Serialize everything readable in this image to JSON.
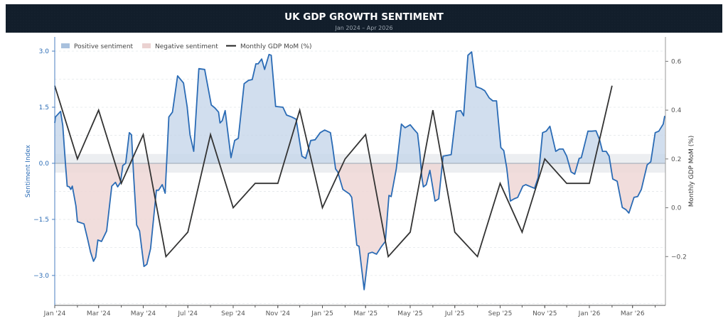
{
  "header": {
    "title": "UK GDP GROWTH SENTIMENT",
    "subtitle": "Jan 2024 – Apr 2026"
  },
  "colors": {
    "header_bg": "#121e2b",
    "sentiment_line": "#2a6bb5",
    "positive_fill": "#c5d6ea",
    "negative_fill": "#efd7d6",
    "gdp_line": "#333333",
    "neutral_band": "#e9ebee"
  },
  "chart_data": {
    "type": "line",
    "title": "UK GDP GROWTH SENTIMENT",
    "subtitle": "Jan 2024 – Apr 2026",
    "xlabel": "",
    "ylabel": "Sentiment Index",
    "ylabel_right": "Monthly GDP MoM (%)",
    "xlim": [
      "2024-01-01",
      "2026-04-15"
    ],
    "ylim": [
      -3.8,
      3.38
    ],
    "ylim_right": [
      -0.4,
      0.7
    ],
    "x_ticks": [
      "Jan '24",
      "Mar '24",
      "May '24",
      "Jul '24",
      "Sep '24",
      "Nov '24",
      "Jan '25",
      "Mar '25",
      "May '25",
      "Jul '25",
      "Sep '25",
      "Nov '25",
      "Jan '26",
      "Mar '26"
    ],
    "x_tick_dates": [
      "2024-01-01",
      "2024-03-01",
      "2024-05-01",
      "2024-07-01",
      "2024-09-01",
      "2024-11-01",
      "2025-01-01",
      "2025-03-01",
      "2025-05-01",
      "2025-07-01",
      "2025-09-01",
      "2025-11-01",
      "2026-01-01",
      "2026-03-01"
    ],
    "y_ticks": [
      3.0,
      1.5,
      0.0,
      -1.5,
      -3.0
    ],
    "y_tick_labels": [
      "3.0",
      "1.5",
      "0.0",
      "−1.5",
      "−3.0"
    ],
    "y_ticks_right": [
      0.6,
      0.4,
      0.2,
      0.0,
      -0.2
    ],
    "y_tick_labels_right": [
      "0.6",
      "0.4",
      "0.2",
      "0.0",
      "−0.2"
    ],
    "grid": "horizontal dashed",
    "neutral_band": [
      -0.25,
      0.25
    ],
    "legend": {
      "placement": "top-left",
      "entries": [
        "Positive sentiment",
        "Negative sentiment",
        "Monthly GDP MoM (%)"
      ]
    },
    "series": [
      {
        "name": "Sentiment",
        "axis": "left",
        "points": [
          [
            "2024-01-01",
            1.08
          ],
          [
            "2024-01-02",
            1.24
          ],
          [
            "2024-01-09",
            1.39
          ],
          [
            "2024-01-12",
            1.01
          ],
          [
            "2024-01-16",
            -0.1
          ],
          [
            "2024-01-18",
            -0.61
          ],
          [
            "2024-01-21",
            -0.63
          ],
          [
            "2024-01-23",
            -0.7
          ],
          [
            "2024-01-25",
            -0.61
          ],
          [
            "2024-01-30",
            -1.14
          ],
          [
            "2024-02-01",
            -1.56
          ],
          [
            "2024-02-10",
            -1.62
          ],
          [
            "2024-02-15",
            -2.03
          ],
          [
            "2024-02-19",
            -2.38
          ],
          [
            "2024-02-23",
            -2.62
          ],
          [
            "2024-02-26",
            -2.51
          ],
          [
            "2024-02-29",
            -2.05
          ],
          [
            "2024-03-05",
            -2.09
          ],
          [
            "2024-03-12",
            -1.81
          ],
          [
            "2024-03-19",
            -0.61
          ],
          [
            "2024-03-24",
            -0.51
          ],
          [
            "2024-03-27",
            -0.63
          ],
          [
            "2024-03-31",
            -0.51
          ],
          [
            "2024-04-03",
            -0.06
          ],
          [
            "2024-04-07",
            0.0
          ],
          [
            "2024-04-12",
            0.82
          ],
          [
            "2024-04-15",
            0.76
          ],
          [
            "2024-04-18",
            -0.38
          ],
          [
            "2024-04-22",
            -1.65
          ],
          [
            "2024-04-26",
            -1.81
          ],
          [
            "2024-05-02",
            -2.76
          ],
          [
            "2024-05-06",
            -2.7
          ],
          [
            "2024-05-11",
            -2.28
          ],
          [
            "2024-05-19",
            -0.72
          ],
          [
            "2024-05-22",
            -0.72
          ],
          [
            "2024-05-27",
            -0.57
          ],
          [
            "2024-05-31",
            -0.8
          ],
          [
            "2024-06-05",
            1.24
          ],
          [
            "2024-06-10",
            1.37
          ],
          [
            "2024-06-17",
            2.34
          ],
          [
            "2024-06-22",
            2.22
          ],
          [
            "2024-06-25",
            2.15
          ],
          [
            "2024-06-30",
            1.52
          ],
          [
            "2024-07-04",
            0.76
          ],
          [
            "2024-07-09",
            0.32
          ],
          [
            "2024-07-16",
            2.53
          ],
          [
            "2024-07-24",
            2.51
          ],
          [
            "2024-08-02",
            1.56
          ],
          [
            "2024-08-07",
            1.48
          ],
          [
            "2024-08-12",
            1.37
          ],
          [
            "2024-08-14",
            1.08
          ],
          [
            "2024-08-17",
            1.14
          ],
          [
            "2024-08-21",
            1.41
          ],
          [
            "2024-08-29",
            0.15
          ],
          [
            "2024-09-03",
            0.61
          ],
          [
            "2024-09-08",
            0.67
          ],
          [
            "2024-09-16",
            2.13
          ],
          [
            "2024-09-22",
            2.22
          ],
          [
            "2024-09-27",
            2.24
          ],
          [
            "2024-10-02",
            2.66
          ],
          [
            "2024-10-05",
            2.66
          ],
          [
            "2024-10-10",
            2.79
          ],
          [
            "2024-10-14",
            2.51
          ],
          [
            "2024-10-20",
            2.91
          ],
          [
            "2024-10-23",
            2.89
          ],
          [
            "2024-10-29",
            1.52
          ],
          [
            "2024-11-08",
            1.5
          ],
          [
            "2024-11-13",
            1.29
          ],
          [
            "2024-11-20",
            1.24
          ],
          [
            "2024-11-26",
            1.18
          ],
          [
            "2024-12-04",
            0.19
          ],
          [
            "2024-12-09",
            0.13
          ],
          [
            "2024-12-16",
            0.61
          ],
          [
            "2024-12-22",
            0.63
          ],
          [
            "2024-12-29",
            0.82
          ],
          [
            "2025-01-04",
            0.89
          ],
          [
            "2025-01-12",
            0.82
          ],
          [
            "2025-01-15",
            0.44
          ],
          [
            "2025-01-19",
            -0.15
          ],
          [
            "2025-01-22",
            -0.23
          ],
          [
            "2025-01-29",
            -0.7
          ],
          [
            "2025-02-07",
            -0.82
          ],
          [
            "2025-02-10",
            -0.91
          ],
          [
            "2025-02-17",
            -2.19
          ],
          [
            "2025-02-20",
            -2.22
          ],
          [
            "2025-02-27",
            -3.38
          ],
          [
            "2025-03-05",
            -2.41
          ],
          [
            "2025-03-10",
            -2.38
          ],
          [
            "2025-03-16",
            -2.43
          ],
          [
            "2025-03-23",
            -2.22
          ],
          [
            "2025-03-28",
            -2.09
          ],
          [
            "2025-04-02",
            -0.86
          ],
          [
            "2025-04-05",
            -0.89
          ],
          [
            "2025-04-12",
            -0.15
          ],
          [
            "2025-04-19",
            1.05
          ],
          [
            "2025-04-24",
            0.95
          ],
          [
            "2025-05-01",
            1.03
          ],
          [
            "2025-05-06",
            0.91
          ],
          [
            "2025-05-11",
            0.8
          ],
          [
            "2025-05-14",
            0.32
          ],
          [
            "2025-05-17",
            -0.38
          ],
          [
            "2025-05-19",
            -0.63
          ],
          [
            "2025-05-23",
            -0.57
          ],
          [
            "2025-05-28",
            -0.19
          ],
          [
            "2025-06-04",
            -1.01
          ],
          [
            "2025-06-09",
            -0.95
          ],
          [
            "2025-06-15",
            0.19
          ],
          [
            "2025-06-26",
            0.23
          ],
          [
            "2025-07-03",
            1.39
          ],
          [
            "2025-07-09",
            1.41
          ],
          [
            "2025-07-13",
            1.27
          ],
          [
            "2025-07-19",
            2.89
          ],
          [
            "2025-07-24",
            2.98
          ],
          [
            "2025-07-30",
            2.05
          ],
          [
            "2025-08-06",
            2.0
          ],
          [
            "2025-08-11",
            1.94
          ],
          [
            "2025-08-17",
            1.75
          ],
          [
            "2025-08-22",
            1.67
          ],
          [
            "2025-08-27",
            1.67
          ],
          [
            "2025-09-02",
            0.42
          ],
          [
            "2025-09-06",
            0.34
          ],
          [
            "2025-09-10",
            -0.13
          ],
          [
            "2025-09-15",
            -1.01
          ],
          [
            "2025-09-20",
            -0.95
          ],
          [
            "2025-09-25",
            -0.91
          ],
          [
            "2025-10-02",
            -0.61
          ],
          [
            "2025-10-06",
            -0.57
          ],
          [
            "2025-10-13",
            -0.63
          ],
          [
            "2025-10-18",
            -0.67
          ],
          [
            "2025-10-23",
            -0.38
          ],
          [
            "2025-10-29",
            0.82
          ],
          [
            "2025-11-03",
            0.86
          ],
          [
            "2025-11-08",
            0.99
          ],
          [
            "2025-11-16",
            0.32
          ],
          [
            "2025-11-21",
            0.38
          ],
          [
            "2025-11-26",
            0.38
          ],
          [
            "2025-12-01",
            0.19
          ],
          [
            "2025-12-07",
            -0.23
          ],
          [
            "2025-12-12",
            -0.29
          ],
          [
            "2025-12-18",
            0.13
          ],
          [
            "2025-12-21",
            0.15
          ],
          [
            "2025-12-30",
            0.86
          ],
          [
            "2026-01-04",
            0.86
          ],
          [
            "2026-01-10",
            0.87
          ],
          [
            "2026-01-15",
            0.63
          ],
          [
            "2026-01-19",
            0.32
          ],
          [
            "2026-01-24",
            0.32
          ],
          [
            "2026-01-28",
            0.19
          ],
          [
            "2026-02-02",
            -0.42
          ],
          [
            "2026-02-08",
            -0.48
          ],
          [
            "2026-02-15",
            -1.18
          ],
          [
            "2026-02-20",
            -1.24
          ],
          [
            "2026-02-24",
            -1.33
          ],
          [
            "2026-03-03",
            -0.91
          ],
          [
            "2026-03-08",
            -0.89
          ],
          [
            "2026-03-13",
            -0.7
          ],
          [
            "2026-03-21",
            -0.04
          ],
          [
            "2026-03-26",
            0.04
          ],
          [
            "2026-04-01",
            0.82
          ],
          [
            "2026-04-06",
            0.86
          ],
          [
            "2026-04-12",
            1.05
          ],
          [
            "2026-04-14",
            1.27
          ]
        ]
      },
      {
        "name": "Monthly GDP MoM (%)",
        "axis": "right",
        "points": [
          [
            "2024-01-01",
            0.5
          ],
          [
            "2024-02-01",
            0.2
          ],
          [
            "2024-03-01",
            0.4
          ],
          [
            "2024-04-01",
            0.1
          ],
          [
            "2024-05-01",
            0.3
          ],
          [
            "2024-06-01",
            -0.2
          ],
          [
            "2024-07-01",
            -0.1
          ],
          [
            "2024-08-01",
            0.3
          ],
          [
            "2024-09-01",
            0.0
          ],
          [
            "2024-10-01",
            0.1
          ],
          [
            "2024-11-01",
            0.1
          ],
          [
            "2024-12-01",
            0.4
          ],
          [
            "2025-01-01",
            0.0
          ],
          [
            "2025-02-01",
            0.2
          ],
          [
            "2025-03-01",
            0.3
          ],
          [
            "2025-04-01",
            -0.2
          ],
          [
            "2025-05-01",
            -0.1
          ],
          [
            "2025-06-01",
            0.4
          ],
          [
            "2025-07-01",
            -0.1
          ],
          [
            "2025-08-01",
            -0.2
          ],
          [
            "2025-09-01",
            0.1
          ],
          [
            "2025-10-01",
            -0.1
          ],
          [
            "2025-11-01",
            0.2
          ],
          [
            "2025-12-01",
            0.1
          ],
          [
            "2026-01-01",
            0.1
          ],
          [
            "2026-02-01",
            0.5
          ]
        ]
      }
    ]
  }
}
